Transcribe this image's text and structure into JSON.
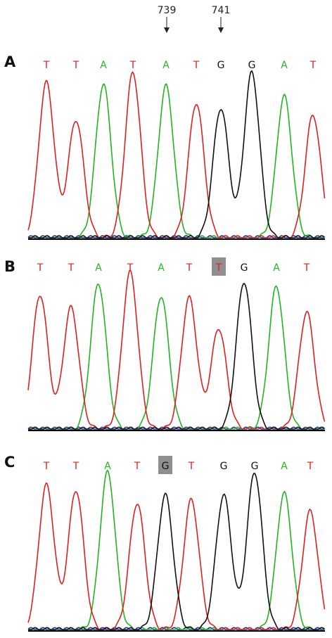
{
  "colors": {
    "T": "#e02020",
    "A": "#22b522",
    "G": "#111111",
    "C": "#1a2fa8",
    "highlight": "#8f8f8f",
    "axis": "#000000"
  },
  "markers": [
    {
      "label": "739",
      "base_index": 4
    },
    {
      "label": "741",
      "base_index": 6
    }
  ],
  "panels": [
    {
      "label": "A",
      "bases": [
        "T",
        "T",
        "A",
        "T",
        "A",
        "T",
        "G",
        "G",
        "A",
        "T"
      ],
      "highlight_index": null,
      "peak_heights": [
        0.92,
        0.7,
        0.91,
        0.98,
        0.9,
        0.8,
        0.77,
        0.98,
        0.84,
        0.73
      ]
    },
    {
      "label": "B",
      "bases": [
        "T",
        "T",
        "A",
        "T",
        "A",
        "T",
        "T",
        "G",
        "A",
        "T"
      ],
      "highlight_index": 6,
      "peak_heights": [
        0.84,
        0.76,
        0.91,
        0.98,
        0.83,
        0.82,
        0.63,
        0.92,
        0.89,
        0.73
      ]
    },
    {
      "label": "C",
      "bases": [
        "T",
        "T",
        "A",
        "T",
        "G",
        "T",
        "G",
        "G",
        "A",
        "T"
      ],
      "highlight_index": 4,
      "peak_heights": [
        0.89,
        0.86,
        0.97,
        0.78,
        0.83,
        0.8,
        0.83,
        0.97,
        0.84,
        0.73
      ]
    }
  ]
}
